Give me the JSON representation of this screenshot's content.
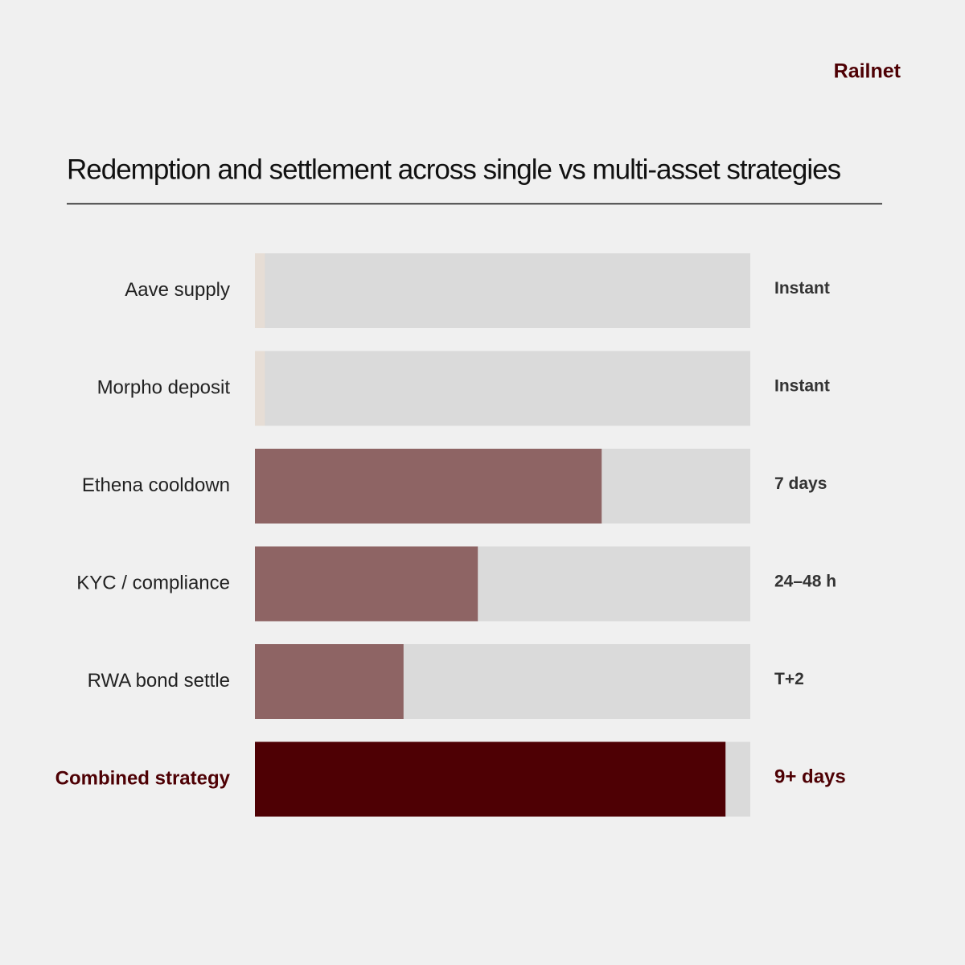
{
  "brand": "Railnet",
  "chart_data": {
    "type": "bar",
    "orientation": "horizontal",
    "title": "Redemption and settlement across single vs multi-asset strategies",
    "categories": [
      "Aave supply",
      "Morpho deposit",
      "Ethena cooldown",
      "KYC / compliance",
      "RWA bond settle",
      "Combined strategy"
    ],
    "values": [
      2,
      2,
      70,
      45,
      30,
      95
    ],
    "duration_labels": [
      "Instant",
      "Instant",
      "7 days",
      "24–48 h",
      "T+2",
      "9+ days"
    ],
    "colors": [
      "#e6ddd5",
      "#e6ddd5",
      "#8e6464",
      "#8e6464",
      "#8e6464",
      "#4e0004"
    ],
    "track_color": "#dadada",
    "highlight": 5,
    "highlight_color": "#4e0004",
    "xlim": [
      0,
      100
    ]
  }
}
